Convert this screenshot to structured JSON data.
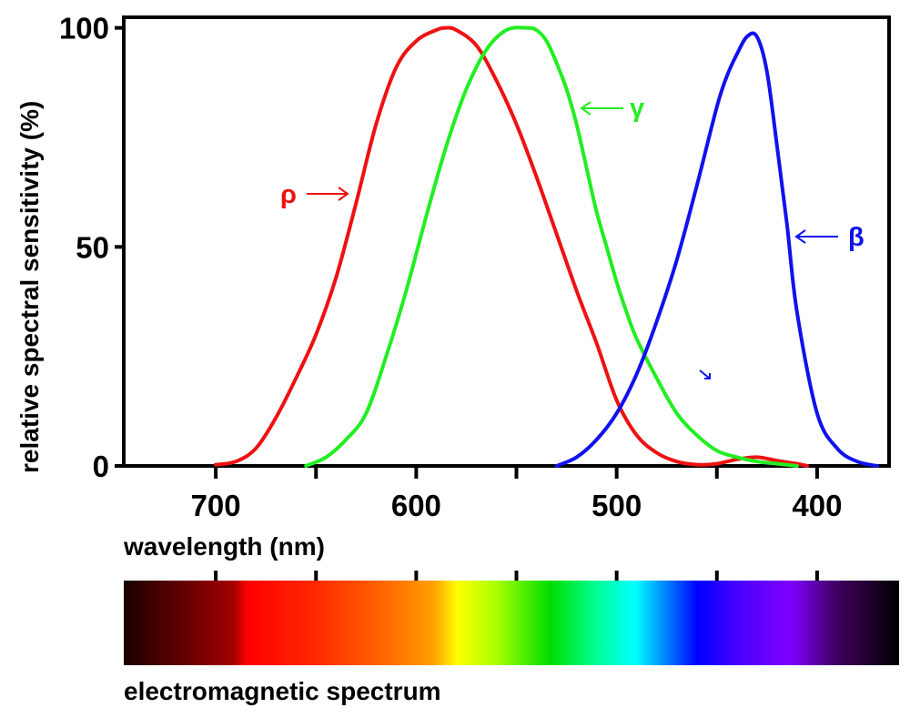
{
  "chart_data": {
    "type": "line",
    "xlabel": "wavelength (nm)",
    "ylabel": "relative spectral sensitivity (%)",
    "xlim": [
      745,
      365
    ],
    "ylim": [
      0,
      102
    ],
    "x_reversed": true,
    "x_ticks": [
      700,
      650,
      600,
      550,
      500,
      450,
      400
    ],
    "x_tick_labels": [
      {
        "x": 700,
        "label": "700"
      },
      {
        "x": 600,
        "label": "600"
      },
      {
        "x": 500,
        "label": "500"
      },
      {
        "x": 400,
        "label": "400"
      }
    ],
    "y_ticks": [
      {
        "y": 0,
        "label": "0"
      },
      {
        "y": 50,
        "label": "50"
      },
      {
        "y": 100,
        "label": "100"
      }
    ],
    "grid": false,
    "spectrum_label": "electromagnetic spectrum",
    "series": [
      {
        "name": "ρ",
        "color": "#ee1111",
        "x": [
          700,
          690,
          680,
          670,
          660,
          650,
          640,
          630,
          620,
          610,
          600,
          590,
          585,
          580,
          570,
          560,
          550,
          540,
          530,
          520,
          510,
          500,
          490,
          480,
          470,
          460,
          450,
          440,
          430,
          420,
          410,
          405
        ],
        "y": [
          0.3,
          1,
          4,
          11,
          20,
          30,
          43,
          60,
          78,
          91,
          97,
          99.5,
          100,
          99.5,
          96,
          88,
          78,
          66,
          53,
          40,
          28,
          15,
          7,
          3,
          1,
          0.3,
          0.5,
          1.5,
          2,
          1.2,
          0.5,
          0
        ]
      },
      {
        "name": "γ",
        "color": "#22ee22",
        "x": [
          655,
          645,
          635,
          625,
          615,
          605,
          595,
          585,
          575,
          565,
          555,
          545,
          540,
          535,
          530,
          525,
          520,
          515,
          510,
          505,
          500,
          495,
          490,
          480,
          470,
          460,
          450,
          440,
          430,
          420,
          410
        ],
        "y": [
          0,
          2,
          6,
          12,
          25,
          40,
          57,
          73,
          86,
          95,
          99.5,
          100,
          99.5,
          97,
          92,
          86,
          78,
          68,
          58,
          50,
          42,
          35,
          29,
          20,
          12,
          7,
          3.5,
          2,
          1,
          0.5,
          0
        ]
      },
      {
        "name": "β",
        "color": "#1111ee",
        "x": [
          530,
          520,
          510,
          500,
          490,
          480,
          470,
          460,
          450,
          445,
          440,
          435,
          430,
          425,
          420,
          415,
          410,
          400,
          390,
          380,
          370
        ],
        "y": [
          0,
          2,
          6,
          12,
          21,
          33,
          47,
          64,
          82,
          89,
          94,
          98,
          98,
          90,
          73,
          55,
          35,
          12,
          4,
          1,
          0
        ]
      }
    ],
    "annotations": [
      {
        "text": "ρ",
        "color": "#ee1111",
        "arrow": "→"
      },
      {
        "text": "γ",
        "color": "#22ee22",
        "arrow": "←"
      },
      {
        "text": "β",
        "color": "#1111ee",
        "arrow": "←"
      }
    ]
  }
}
